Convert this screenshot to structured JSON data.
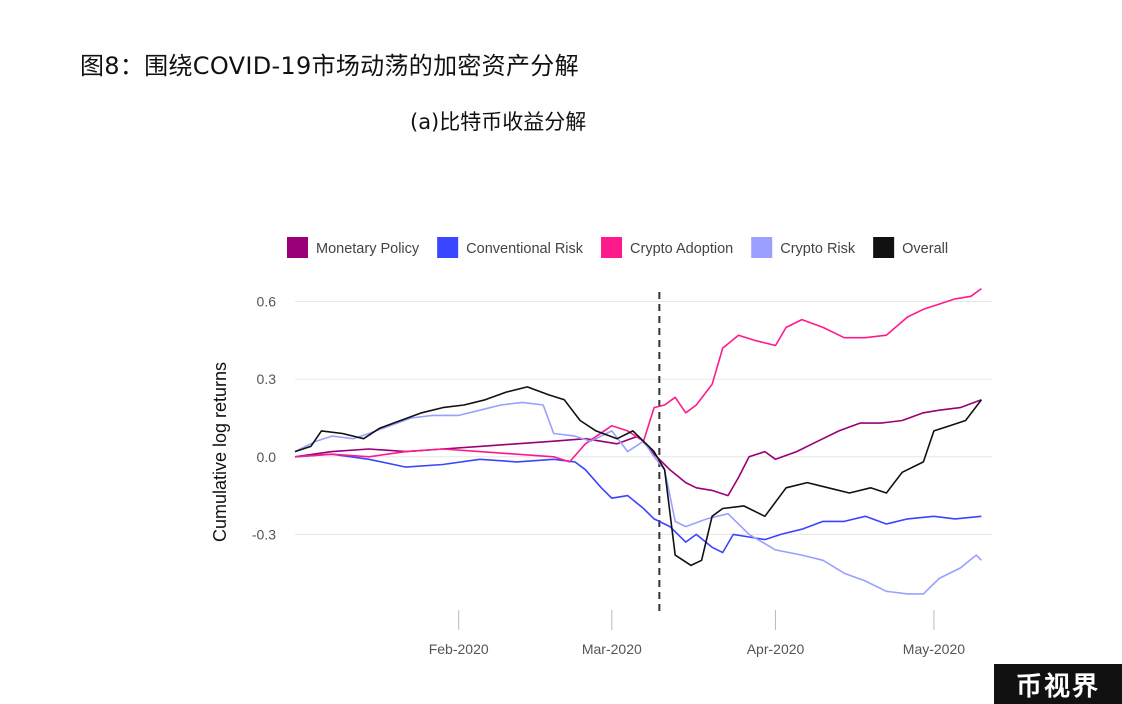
{
  "figure": {
    "title": "图8：围绕COVID-19市场动荡的加密资产分解",
    "subtitle": "(a)比特币收益分解",
    "watermark": "币视界"
  },
  "chart_data": {
    "type": "line",
    "title": "(a)比特币收益分解",
    "ylabel": "Cumulative log returns",
    "xlabel": "",
    "ylim": [
      -0.6,
      0.66
    ],
    "yticks": [
      0.6,
      0.3,
      0.0,
      -0.3
    ],
    "ytick_labels": [
      "0.6",
      "0.3",
      "0.0",
      "-0.3"
    ],
    "xlim": [
      "2020-01-01",
      "2020-05-12"
    ],
    "xticks": [
      "2020-02-01",
      "2020-03-01",
      "2020-04-01",
      "2020-05-01"
    ],
    "xtick_labels": [
      "Feb-2020",
      "Mar-2020",
      "Apr-2020",
      "May-2020"
    ],
    "event_line": "2020-03-10",
    "grid": "horizontal",
    "legend_position": "top",
    "series": [
      {
        "name": "Monetary Policy",
        "color": "#990077",
        "points": [
          [
            "2020-01-01",
            0.0
          ],
          [
            "2020-01-08",
            0.02
          ],
          [
            "2020-01-15",
            0.03
          ],
          [
            "2020-01-22",
            0.02
          ],
          [
            "2020-01-29",
            0.03
          ],
          [
            "2020-02-05",
            0.04
          ],
          [
            "2020-02-12",
            0.05
          ],
          [
            "2020-02-19",
            0.06
          ],
          [
            "2020-02-25",
            0.07
          ],
          [
            "2020-03-02",
            0.05
          ],
          [
            "2020-03-06",
            0.08
          ],
          [
            "2020-03-09",
            0.01
          ],
          [
            "2020-03-12",
            -0.05
          ],
          [
            "2020-03-15",
            -0.1
          ],
          [
            "2020-03-17",
            -0.12
          ],
          [
            "2020-03-20",
            -0.13
          ],
          [
            "2020-03-23",
            -0.15
          ],
          [
            "2020-03-25",
            -0.08
          ],
          [
            "2020-03-27",
            0.0
          ],
          [
            "2020-03-30",
            0.02
          ],
          [
            "2020-04-01",
            -0.01
          ],
          [
            "2020-04-05",
            0.02
          ],
          [
            "2020-04-09",
            0.06
          ],
          [
            "2020-04-13",
            0.1
          ],
          [
            "2020-04-17",
            0.13
          ],
          [
            "2020-04-21",
            0.13
          ],
          [
            "2020-04-25",
            0.14
          ],
          [
            "2020-04-29",
            0.17
          ],
          [
            "2020-05-02",
            0.18
          ],
          [
            "2020-05-06",
            0.19
          ],
          [
            "2020-05-10",
            0.22
          ]
        ]
      },
      {
        "name": "Conventional Risk",
        "color": "#3a45ff",
        "points": [
          [
            "2020-01-01",
            0.0
          ],
          [
            "2020-01-08",
            0.01
          ],
          [
            "2020-01-15",
            -0.01
          ],
          [
            "2020-01-22",
            -0.04
          ],
          [
            "2020-01-29",
            -0.03
          ],
          [
            "2020-02-05",
            -0.01
          ],
          [
            "2020-02-12",
            -0.02
          ],
          [
            "2020-02-19",
            -0.01
          ],
          [
            "2020-02-23",
            -0.02
          ],
          [
            "2020-02-25",
            -0.05
          ],
          [
            "2020-02-28",
            -0.12
          ],
          [
            "2020-03-01",
            -0.16
          ],
          [
            "2020-03-04",
            -0.15
          ],
          [
            "2020-03-07",
            -0.2
          ],
          [
            "2020-03-09",
            -0.24
          ],
          [
            "2020-03-12",
            -0.27
          ],
          [
            "2020-03-15",
            -0.33
          ],
          [
            "2020-03-17",
            -0.3
          ],
          [
            "2020-03-20",
            -0.35
          ],
          [
            "2020-03-22",
            -0.37
          ],
          [
            "2020-03-24",
            -0.3
          ],
          [
            "2020-03-27",
            -0.31
          ],
          [
            "2020-03-30",
            -0.32
          ],
          [
            "2020-04-02",
            -0.3
          ],
          [
            "2020-04-06",
            -0.28
          ],
          [
            "2020-04-10",
            -0.25
          ],
          [
            "2020-04-14",
            -0.25
          ],
          [
            "2020-04-18",
            -0.23
          ],
          [
            "2020-04-22",
            -0.26
          ],
          [
            "2020-04-26",
            -0.24
          ],
          [
            "2020-05-01",
            -0.23
          ],
          [
            "2020-05-05",
            -0.24
          ],
          [
            "2020-05-10",
            -0.23
          ]
        ]
      },
      {
        "name": "Crypto Adoption",
        "color": "#ff1a8c",
        "points": [
          [
            "2020-01-01",
            0.0
          ],
          [
            "2020-01-08",
            0.01
          ],
          [
            "2020-01-15",
            0.0
          ],
          [
            "2020-01-22",
            0.02
          ],
          [
            "2020-01-29",
            0.03
          ],
          [
            "2020-02-05",
            0.02
          ],
          [
            "2020-02-12",
            0.01
          ],
          [
            "2020-02-19",
            0.0
          ],
          [
            "2020-02-22",
            -0.02
          ],
          [
            "2020-02-25",
            0.05
          ],
          [
            "2020-03-01",
            0.12
          ],
          [
            "2020-03-04",
            0.1
          ],
          [
            "2020-03-07",
            0.06
          ],
          [
            "2020-03-09",
            0.19
          ],
          [
            "2020-03-11",
            0.2
          ],
          [
            "2020-03-13",
            0.23
          ],
          [
            "2020-03-15",
            0.17
          ],
          [
            "2020-03-17",
            0.2
          ],
          [
            "2020-03-20",
            0.28
          ],
          [
            "2020-03-22",
            0.42
          ],
          [
            "2020-03-25",
            0.47
          ],
          [
            "2020-03-28",
            0.45
          ],
          [
            "2020-04-01",
            0.43
          ],
          [
            "2020-04-03",
            0.5
          ],
          [
            "2020-04-06",
            0.53
          ],
          [
            "2020-04-10",
            0.5
          ],
          [
            "2020-04-14",
            0.46
          ],
          [
            "2020-04-18",
            0.46
          ],
          [
            "2020-04-22",
            0.47
          ],
          [
            "2020-04-26",
            0.54
          ],
          [
            "2020-04-29",
            0.57
          ],
          [
            "2020-05-02",
            0.59
          ],
          [
            "2020-05-05",
            0.61
          ],
          [
            "2020-05-08",
            0.62
          ],
          [
            "2020-05-10",
            0.65
          ]
        ]
      },
      {
        "name": "Crypto Risk",
        "color": "#99a0ff",
        "points": [
          [
            "2020-01-01",
            0.02
          ],
          [
            "2020-01-05",
            0.06
          ],
          [
            "2020-01-08",
            0.08
          ],
          [
            "2020-01-12",
            0.07
          ],
          [
            "2020-01-15",
            0.09
          ],
          [
            "2020-01-19",
            0.12
          ],
          [
            "2020-01-23",
            0.15
          ],
          [
            "2020-01-27",
            0.16
          ],
          [
            "2020-02-01",
            0.16
          ],
          [
            "2020-02-05",
            0.18
          ],
          [
            "2020-02-09",
            0.2
          ],
          [
            "2020-02-13",
            0.21
          ],
          [
            "2020-02-17",
            0.2
          ],
          [
            "2020-02-19",
            0.09
          ],
          [
            "2020-02-23",
            0.08
          ],
          [
            "2020-02-26",
            0.06
          ],
          [
            "2020-03-01",
            0.1
          ],
          [
            "2020-03-04",
            0.02
          ],
          [
            "2020-03-07",
            0.06
          ],
          [
            "2020-03-09",
            0.0
          ],
          [
            "2020-03-11",
            -0.05
          ],
          [
            "2020-03-13",
            -0.25
          ],
          [
            "2020-03-15",
            -0.27
          ],
          [
            "2020-03-19",
            -0.24
          ],
          [
            "2020-03-23",
            -0.22
          ],
          [
            "2020-03-27",
            -0.3
          ],
          [
            "2020-04-01",
            -0.36
          ],
          [
            "2020-04-06",
            -0.38
          ],
          [
            "2020-04-10",
            -0.4
          ],
          [
            "2020-04-14",
            -0.45
          ],
          [
            "2020-04-18",
            -0.48
          ],
          [
            "2020-04-22",
            -0.52
          ],
          [
            "2020-04-26",
            -0.53
          ],
          [
            "2020-04-29",
            -0.53
          ],
          [
            "2020-05-02",
            -0.47
          ],
          [
            "2020-05-06",
            -0.43
          ],
          [
            "2020-05-09",
            -0.38
          ],
          [
            "2020-05-10",
            -0.4
          ]
        ]
      },
      {
        "name": "Overall",
        "color": "#111111",
        "points": [
          [
            "2020-01-01",
            0.02
          ],
          [
            "2020-01-04",
            0.04
          ],
          [
            "2020-01-06",
            0.1
          ],
          [
            "2020-01-10",
            0.09
          ],
          [
            "2020-01-14",
            0.07
          ],
          [
            "2020-01-17",
            0.11
          ],
          [
            "2020-01-21",
            0.14
          ],
          [
            "2020-01-25",
            0.17
          ],
          [
            "2020-01-29",
            0.19
          ],
          [
            "2020-02-02",
            0.2
          ],
          [
            "2020-02-06",
            0.22
          ],
          [
            "2020-02-10",
            0.25
          ],
          [
            "2020-02-14",
            0.27
          ],
          [
            "2020-02-18",
            0.24
          ],
          [
            "2020-02-21",
            0.22
          ],
          [
            "2020-02-24",
            0.14
          ],
          [
            "2020-02-27",
            0.1
          ],
          [
            "2020-03-02",
            0.07
          ],
          [
            "2020-03-05",
            0.1
          ],
          [
            "2020-03-09",
            0.02
          ],
          [
            "2020-03-11",
            -0.05
          ],
          [
            "2020-03-13",
            -0.38
          ],
          [
            "2020-03-16",
            -0.42
          ],
          [
            "2020-03-18",
            -0.4
          ],
          [
            "2020-03-20",
            -0.23
          ],
          [
            "2020-03-22",
            -0.2
          ],
          [
            "2020-03-26",
            -0.19
          ],
          [
            "2020-03-30",
            -0.23
          ],
          [
            "2020-04-03",
            -0.12
          ],
          [
            "2020-04-07",
            -0.1
          ],
          [
            "2020-04-11",
            -0.12
          ],
          [
            "2020-04-15",
            -0.14
          ],
          [
            "2020-04-19",
            -0.12
          ],
          [
            "2020-04-22",
            -0.14
          ],
          [
            "2020-04-25",
            -0.06
          ],
          [
            "2020-04-29",
            -0.02
          ],
          [
            "2020-05-01",
            0.1
          ],
          [
            "2020-05-04",
            0.12
          ],
          [
            "2020-05-07",
            0.14
          ],
          [
            "2020-05-10",
            0.22
          ]
        ]
      }
    ]
  }
}
